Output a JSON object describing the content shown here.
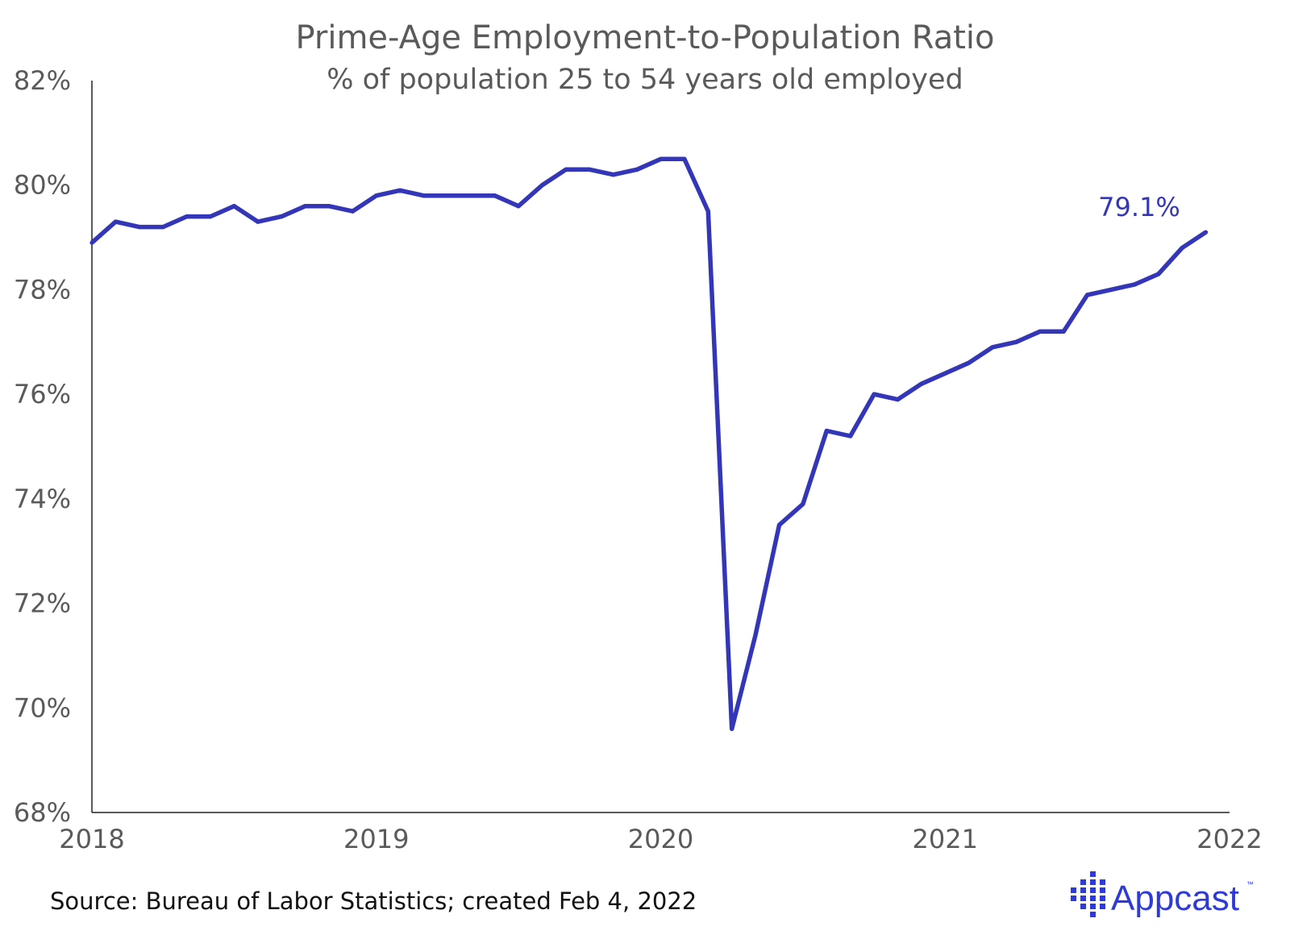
{
  "chart_data": {
    "type": "line",
    "title": "Prime-Age Employment-to-Population Ratio",
    "subtitle": "% of population 25 to 54 years old employed",
    "x_tick_labels": [
      "2018",
      "2019",
      "2020",
      "2021",
      "2022"
    ],
    "y_tick_labels": [
      "82%",
      "80%",
      "78%",
      "76%",
      "74%",
      "72%",
      "70%",
      "68%"
    ],
    "ylim": [
      68,
      82
    ],
    "xlim": [
      "2018-01",
      "2022-01"
    ],
    "grid": false,
    "legend": "none",
    "line_color": "#3436b8",
    "end_label": "79.1%",
    "series": [
      {
        "x": [
          "2018-01",
          "2018-02",
          "2018-03",
          "2018-04",
          "2018-05",
          "2018-06",
          "2018-07",
          "2018-08",
          "2018-09",
          "2018-10",
          "2018-11",
          "2018-12",
          "2019-01",
          "2019-02",
          "2019-03",
          "2019-04",
          "2019-05",
          "2019-06",
          "2019-07",
          "2019-08",
          "2019-09",
          "2019-10",
          "2019-11",
          "2019-12",
          "2020-01",
          "2020-02",
          "2020-03",
          "2020-04",
          "2020-05",
          "2020-06",
          "2020-07",
          "2020-08",
          "2020-09",
          "2020-10",
          "2020-11",
          "2020-12",
          "2021-01",
          "2021-02",
          "2021-03",
          "2021-04",
          "2021-05",
          "2021-06",
          "2021-07",
          "2021-08",
          "2021-09",
          "2021-10",
          "2021-11",
          "2021-12"
        ],
        "values": [
          78.9,
          79.3,
          79.2,
          79.2,
          79.4,
          79.4,
          79.6,
          79.3,
          79.4,
          79.6,
          79.6,
          79.5,
          79.8,
          79.9,
          79.8,
          79.8,
          79.8,
          79.8,
          79.6,
          80.0,
          80.3,
          80.3,
          80.2,
          80.3,
          80.5,
          80.5,
          79.5,
          69.6,
          71.4,
          73.5,
          73.9,
          75.3,
          75.2,
          76.0,
          75.9,
          76.2,
          76.4,
          76.6,
          76.9,
          77.0,
          77.2,
          77.2,
          77.9,
          78.0,
          78.1,
          78.3,
          78.8,
          79.1
        ]
      }
    ]
  },
  "source": "Source: Bureau of Labor Statistics; created Feb 4, 2022",
  "brand": {
    "name": "Appcast",
    "trademark": "™",
    "color": "#2f3bd6"
  }
}
